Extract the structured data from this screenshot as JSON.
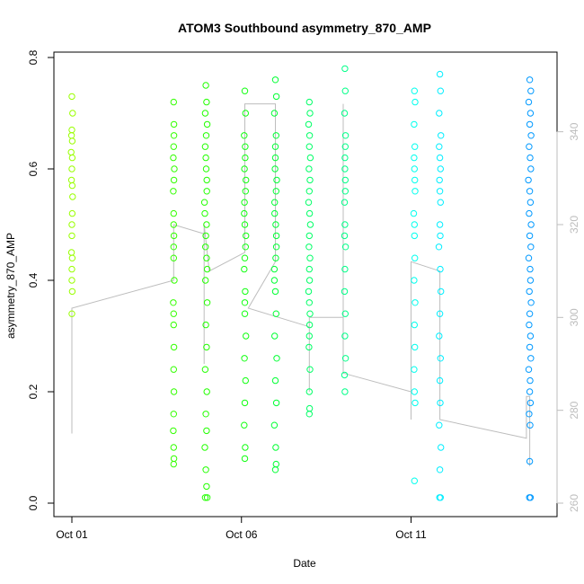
{
  "chart_data": {
    "type": "scatter",
    "title": "ATOM3 Southbound asymmetry_870_AMP",
    "xlabel": "Date",
    "ylabel": "asymmetry_870_AMP",
    "x_unit": "day of October",
    "x_ticks": [
      {
        "value": 1,
        "label": "Oct 01"
      },
      {
        "value": 6,
        "label": "Oct 06"
      },
      {
        "value": 11,
        "label": "Oct 11"
      }
    ],
    "xlim": [
      1.0,
      15.4
    ],
    "ylim": [
      0.0,
      0.8
    ],
    "y_ticks": [
      {
        "value": 0.0,
        "label": "0.0"
      },
      {
        "value": 0.2,
        "label": "0.2"
      },
      {
        "value": 0.4,
        "label": "0.4"
      },
      {
        "value": 0.6,
        "label": "0.6"
      },
      {
        "value": 0.8,
        "label": "0.8"
      }
    ],
    "y2lim": [
      260,
      345
    ],
    "y2_ticks": [
      {
        "value": 260,
        "label": "260"
      },
      {
        "value": 280,
        "label": "280"
      },
      {
        "value": 300,
        "label": "300"
      },
      {
        "value": 320,
        "label": "320"
      },
      {
        "value": 340,
        "label": "340"
      }
    ],
    "clusters": [
      {
        "day": 1.0,
        "color": "#99ff00",
        "points": [
          [
            0,
            0.6
          ],
          [
            0.01,
            0.62
          ],
          [
            -0.01,
            0.58
          ],
          [
            0.02,
            0.55
          ],
          [
            0,
            0.5
          ],
          [
            0.01,
            0.65
          ],
          [
            -0.01,
            0.45
          ],
          [
            0,
            0.42
          ],
          [
            0.01,
            0.38
          ],
          [
            0,
            0.34
          ],
          [
            0.02,
            0.7
          ],
          [
            0,
            0.73
          ],
          [
            -0.01,
            0.66
          ],
          [
            0.01,
            0.52
          ],
          [
            0,
            0.48
          ],
          [
            0.01,
            0.57
          ],
          [
            -0.02,
            0.63
          ],
          [
            0,
            0.4
          ],
          [
            0.01,
            0.44
          ],
          [
            0,
            0.67
          ]
        ]
      },
      {
        "day": 4.0,
        "color": "#33ff00",
        "points": [
          [
            0,
            0.72
          ],
          [
            0.01,
            0.68
          ],
          [
            0,
            0.64
          ],
          [
            0.02,
            0.6
          ],
          [
            -0.01,
            0.56
          ],
          [
            0,
            0.52
          ],
          [
            0.01,
            0.48
          ],
          [
            0,
            0.44
          ],
          [
            0.02,
            0.4
          ],
          [
            -0.01,
            0.36
          ],
          [
            0,
            0.32
          ],
          [
            0.01,
            0.28
          ],
          [
            0,
            0.24
          ],
          [
            0.01,
            0.2
          ],
          [
            0,
            0.16
          ],
          [
            -0.01,
            0.13
          ],
          [
            0,
            0.1
          ],
          [
            0.01,
            0.08
          ],
          [
            0,
            0.07
          ],
          [
            0.01,
            0.58
          ],
          [
            0,
            0.5
          ],
          [
            -0.01,
            0.62
          ],
          [
            0,
            0.46
          ],
          [
            0.01,
            0.66
          ],
          [
            0,
            0.34
          ]
        ]
      },
      {
        "day": 4.95,
        "color": "#22ff00",
        "points": [
          [
            0,
            0.75
          ],
          [
            0.02,
            0.72
          ],
          [
            0.04,
            0.68
          ],
          [
            -0.02,
            0.64
          ],
          [
            0.01,
            0.6
          ],
          [
            0.03,
            0.56
          ],
          [
            -0.03,
            0.52
          ],
          [
            0,
            0.48
          ],
          [
            0.02,
            0.44
          ],
          [
            -0.01,
            0.4
          ],
          [
            0.04,
            0.36
          ],
          [
            0,
            0.32
          ],
          [
            0.02,
            0.28
          ],
          [
            -0.02,
            0.24
          ],
          [
            0.03,
            0.2
          ],
          [
            0,
            0.16
          ],
          [
            0.02,
            0.13
          ],
          [
            -0.03,
            0.1
          ],
          [
            0,
            0.06
          ],
          [
            0.02,
            0.03
          ],
          [
            -0.02,
            0.01
          ],
          [
            0.04,
            0.01
          ],
          [
            0,
            0.62
          ],
          [
            0.03,
            0.58
          ],
          [
            -0.04,
            0.54
          ],
          [
            0.01,
            0.66
          ],
          [
            0.02,
            0.5
          ],
          [
            -0.01,
            0.46
          ],
          [
            0.04,
            0.42
          ],
          [
            -0.02,
            0.7
          ]
        ]
      },
      {
        "day": 6.1,
        "color": "#11ff11",
        "points": [
          [
            0,
            0.74
          ],
          [
            0.02,
            0.7
          ],
          [
            -0.02,
            0.66
          ],
          [
            0.01,
            0.62
          ],
          [
            0.03,
            0.58
          ],
          [
            -0.01,
            0.54
          ],
          [
            0,
            0.5
          ],
          [
            0.02,
            0.46
          ],
          [
            -0.02,
            0.42
          ],
          [
            0.01,
            0.38
          ],
          [
            0,
            0.34
          ],
          [
            0.03,
            0.3
          ],
          [
            -0.01,
            0.26
          ],
          [
            0.02,
            0.22
          ],
          [
            0,
            0.18
          ],
          [
            -0.02,
            0.14
          ],
          [
            0.01,
            0.1
          ],
          [
            0,
            0.08
          ],
          [
            0.02,
            0.56
          ],
          [
            -0.01,
            0.6
          ],
          [
            0.03,
            0.48
          ],
          [
            0,
            0.44
          ],
          [
            -0.02,
            0.52
          ],
          [
            0.01,
            0.64
          ],
          [
            0,
            0.36
          ]
        ]
      },
      {
        "day": 7.0,
        "color": "#00ff33",
        "points": [
          [
            0,
            0.76
          ],
          [
            0.03,
            0.73
          ],
          [
            -0.03,
            0.7
          ],
          [
            0.02,
            0.66
          ],
          [
            0,
            0.62
          ],
          [
            0.04,
            0.58
          ],
          [
            -0.02,
            0.54
          ],
          [
            0.01,
            0.5
          ],
          [
            0.03,
            0.46
          ],
          [
            -0.03,
            0.42
          ],
          [
            0,
            0.38
          ],
          [
            0.02,
            0.34
          ],
          [
            -0.02,
            0.3
          ],
          [
            0.04,
            0.26
          ],
          [
            0,
            0.22
          ],
          [
            0.03,
            0.18
          ],
          [
            -0.03,
            0.14
          ],
          [
            0.01,
            0.1
          ],
          [
            0.02,
            0.07
          ],
          [
            0,
            0.06
          ],
          [
            -0.01,
            0.6
          ],
          [
            0.02,
            0.56
          ],
          [
            -0.02,
            0.52
          ],
          [
            0.03,
            0.48
          ],
          [
            0,
            0.64
          ],
          [
            0.01,
            0.44
          ],
          [
            -0.03,
            0.4
          ]
        ]
      },
      {
        "day": 8.0,
        "color": "#00ff66",
        "points": [
          [
            0,
            0.72
          ],
          [
            0.02,
            0.7
          ],
          [
            -0.02,
            0.68
          ],
          [
            0.01,
            0.66
          ],
          [
            0,
            0.64
          ],
          [
            0.03,
            0.62
          ],
          [
            -0.01,
            0.6
          ],
          [
            0.02,
            0.58
          ],
          [
            0,
            0.56
          ],
          [
            -0.02,
            0.54
          ],
          [
            0.01,
            0.52
          ],
          [
            0.03,
            0.5
          ],
          [
            0,
            0.48
          ],
          [
            -0.01,
            0.46
          ],
          [
            0.02,
            0.44
          ],
          [
            0,
            0.42
          ],
          [
            0.01,
            0.4
          ],
          [
            -0.02,
            0.38
          ],
          [
            0,
            0.36
          ],
          [
            0.02,
            0.34
          ],
          [
            0.01,
            0.32
          ],
          [
            0,
            0.3
          ],
          [
            -0.01,
            0.28
          ],
          [
            0.02,
            0.24
          ],
          [
            0,
            0.2
          ],
          [
            0.01,
            0.17
          ],
          [
            0,
            0.16
          ]
        ]
      },
      {
        "day": 9.05,
        "color": "#00ff88",
        "points": [
          [
            0,
            0.78
          ],
          [
            0.01,
            0.74
          ],
          [
            -0.01,
            0.7
          ],
          [
            0.02,
            0.66
          ],
          [
            0,
            0.62
          ],
          [
            0.01,
            0.58
          ],
          [
            -0.01,
            0.54
          ],
          [
            0,
            0.5
          ],
          [
            0.02,
            0.46
          ],
          [
            0,
            0.42
          ],
          [
            -0.01,
            0.38
          ],
          [
            0.01,
            0.34
          ],
          [
            0,
            0.3
          ],
          [
            0.02,
            0.26
          ],
          [
            -0.01,
            0.23
          ],
          [
            0,
            0.2
          ],
          [
            0.01,
            0.56
          ],
          [
            0,
            0.6
          ],
          [
            -0.01,
            0.48
          ],
          [
            0.01,
            0.64
          ]
        ]
      },
      {
        "day": 11.1,
        "color": "#00ffee",
        "points": [
          [
            0,
            0.74
          ],
          [
            0.02,
            0.72
          ],
          [
            -0.01,
            0.68
          ],
          [
            0.01,
            0.64
          ],
          [
            0,
            0.6
          ],
          [
            0.02,
            0.56
          ],
          [
            -0.02,
            0.52
          ],
          [
            0,
            0.48
          ],
          [
            0.01,
            0.44
          ],
          [
            -0.01,
            0.4
          ],
          [
            0.02,
            0.36
          ],
          [
            0,
            0.32
          ],
          [
            0.01,
            0.28
          ],
          [
            -0.01,
            0.24
          ],
          [
            0,
            0.2
          ],
          [
            0.02,
            0.18
          ],
          [
            0,
            0.04
          ],
          [
            0.01,
            0.58
          ],
          [
            -0.01,
            0.62
          ],
          [
            0,
            0.5
          ]
        ]
      },
      {
        "day": 11.85,
        "color": "#00eeff",
        "points": [
          [
            0,
            0.77
          ],
          [
            0.02,
            0.74
          ],
          [
            -0.02,
            0.7
          ],
          [
            0.03,
            0.66
          ],
          [
            0,
            0.62
          ],
          [
            -0.01,
            0.58
          ],
          [
            0.02,
            0.54
          ],
          [
            0,
            0.5
          ],
          [
            -0.03,
            0.46
          ],
          [
            0.01,
            0.42
          ],
          [
            0.03,
            0.38
          ],
          [
            0,
            0.34
          ],
          [
            -0.02,
            0.3
          ],
          [
            0.02,
            0.26
          ],
          [
            0,
            0.22
          ],
          [
            0.01,
            0.18
          ],
          [
            -0.02,
            0.14
          ],
          [
            0.03,
            0.1
          ],
          [
            0,
            0.06
          ],
          [
            0.02,
            0.01
          ],
          [
            -0.01,
            0.01
          ],
          [
            0,
            0.56
          ],
          [
            0.02,
            0.6
          ],
          [
            -0.02,
            0.64
          ],
          [
            0.01,
            0.48
          ]
        ]
      },
      {
        "day": 14.5,
        "color": "#0099ff",
        "points": [
          [
            0,
            0.76
          ],
          [
            0.03,
            0.74
          ],
          [
            -0.03,
            0.72
          ],
          [
            0.02,
            0.7
          ],
          [
            0,
            0.68
          ],
          [
            0.04,
            0.66
          ],
          [
            -0.02,
            0.64
          ],
          [
            0.01,
            0.62
          ],
          [
            0.03,
            0.6
          ],
          [
            -0.04,
            0.58
          ],
          [
            0,
            0.56
          ],
          [
            0.02,
            0.54
          ],
          [
            -0.02,
            0.52
          ],
          [
            0.04,
            0.5
          ],
          [
            0,
            0.48
          ],
          [
            0.03,
            0.46
          ],
          [
            -0.03,
            0.44
          ],
          [
            0.01,
            0.42
          ],
          [
            0.02,
            0.4
          ],
          [
            -0.01,
            0.38
          ],
          [
            0.04,
            0.36
          ],
          [
            0,
            0.34
          ],
          [
            -0.02,
            0.32
          ],
          [
            0.02,
            0.3
          ],
          [
            0,
            0.28
          ],
          [
            0.03,
            0.26
          ],
          [
            -0.03,
            0.24
          ],
          [
            0.01,
            0.22
          ],
          [
            0,
            0.2
          ],
          [
            0.02,
            0.18
          ],
          [
            -0.02,
            0.16
          ],
          [
            0.01,
            0.14
          ],
          [
            0,
            0.075
          ],
          [
            0.02,
            0.01
          ],
          [
            -0.01,
            0.01
          ]
        ]
      }
    ],
    "trace": {
      "color": "#bdbdbd",
      "points": [
        [
          1.0,
          302
        ],
        [
          1.0,
          275
        ],
        [
          1.0,
          302
        ],
        [
          4.0,
          308
        ],
        [
          4.0,
          320
        ],
        [
          4.9,
          318
        ],
        [
          4.9,
          290
        ],
        [
          4.9,
          320
        ],
        [
          5.05,
          310
        ],
        [
          6.1,
          314
        ],
        [
          6.1,
          340
        ],
        [
          6.1,
          346
        ],
        [
          7.0,
          346
        ],
        [
          7.0,
          312
        ],
        [
          6.2,
          302
        ],
        [
          8.0,
          298
        ],
        [
          8.0,
          284
        ],
        [
          8.0,
          300
        ],
        [
          9.0,
          300
        ],
        [
          9.0,
          346
        ],
        [
          9.0,
          288
        ],
        [
          11.0,
          284
        ],
        [
          11.0,
          278
        ],
        [
          11.0,
          312
        ],
        [
          11.85,
          310
        ],
        [
          11.85,
          278
        ],
        [
          14.4,
          274
        ],
        [
          14.4,
          283
        ],
        [
          14.5,
          283
        ],
        [
          14.5,
          268
        ]
      ]
    }
  }
}
